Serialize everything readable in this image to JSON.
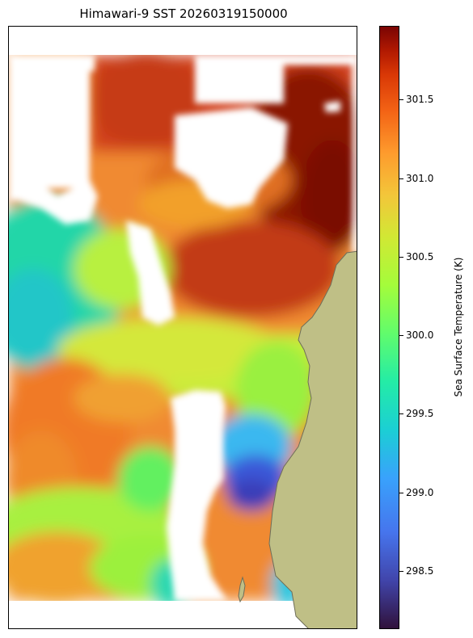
{
  "title": "Himawari-9 SST 20260319150000",
  "colorbar": {
    "label": "Sea Surface Temperature (K)",
    "range": [
      298.13,
      301.97
    ],
    "ticks": [
      "298.5",
      "299.0",
      "299.5",
      "300.0",
      "300.5",
      "301.0",
      "301.5"
    ],
    "colormap": "turbo"
  },
  "colors": {
    "land": "#bfbf86",
    "coastline": "#6e6e5a",
    "no_data": "#ffffff",
    "frame": "#000000"
  },
  "map_data": {
    "variable": "sea_surface_temperature",
    "units": "K"
  }
}
